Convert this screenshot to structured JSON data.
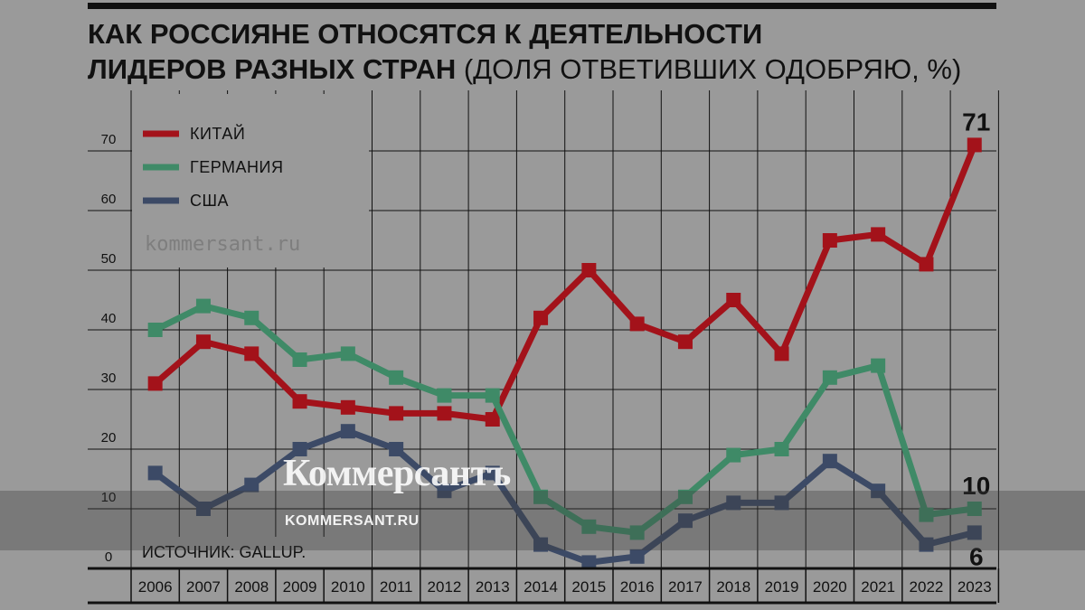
{
  "chart_data": {
    "type": "line",
    "title": "КАК РОССИЯНЕ ОТНОСЯТСЯ К ДЕЯТЕЛЬНОСТИ",
    "title_line2_bold": "ЛИДЕРОВ РАЗНЫХ СТРАН",
    "title_line2_rest": " (ДОЛЯ ОТВЕТИВШИХ ОДОБРЯЮ, %)",
    "x": [
      "2006",
      "2007",
      "2008",
      "2009",
      "2010",
      "2011",
      "2012",
      "2013",
      "2014",
      "2015",
      "2016",
      "2017",
      "2018",
      "2019",
      "2020",
      "2021",
      "2022",
      "2023"
    ],
    "ylim": [
      0,
      75
    ],
    "yticks": [
      0,
      10,
      20,
      30,
      40,
      50,
      60,
      70
    ],
    "grid": true,
    "legend_position": "top-left",
    "series": [
      {
        "name": "КИТАЙ",
        "color": "#a3121a",
        "values": [
          31,
          38,
          36,
          28,
          27,
          26,
          26,
          25,
          42,
          50,
          41,
          38,
          45,
          36,
          55,
          56,
          51,
          71
        ]
      },
      {
        "name": "ГЕРМАНИЯ",
        "color": "#3f8a67",
        "values": [
          40,
          44,
          42,
          35,
          36,
          32,
          29,
          29,
          12,
          7,
          6,
          12,
          19,
          20,
          32,
          34,
          9,
          10
        ]
      },
      {
        "name": "США",
        "color": "#3c4a66",
        "values": [
          16,
          10,
          14,
          20,
          23,
          20,
          13,
          16,
          4,
          1,
          2,
          8,
          11,
          11,
          18,
          13,
          4,
          6
        ]
      }
    ],
    "end_labels": [
      "71",
      "10",
      "6"
    ],
    "source": "ИСТОЧНИК: GALLUP."
  },
  "watermark": {
    "site": "kommersant.ru",
    "brand": "Коммерсантъ",
    "brand_url": "KOMMERSANT.RU"
  }
}
